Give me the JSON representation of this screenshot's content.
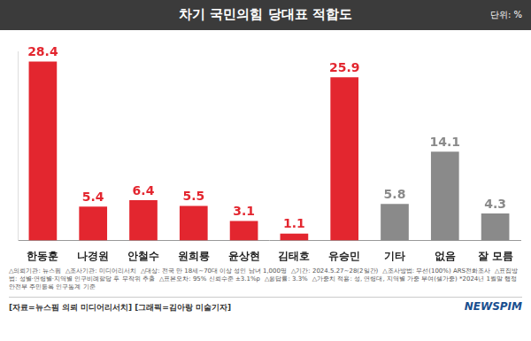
{
  "chart_data": {
    "type": "bar",
    "title": "차기 국민의힘 당대표 적합도",
    "unit_note": "단위: %",
    "categories": [
      "한동훈",
      "나경원",
      "안철수",
      "원희룡",
      "윤상현",
      "김태호",
      "유승민",
      "기타",
      "없음",
      "잘 모름"
    ],
    "values": [
      28.4,
      5.4,
      6.4,
      5.5,
      3.1,
      1.1,
      25.9,
      5.8,
      14.1,
      4.3
    ],
    "colors": [
      "#e3262f",
      "#e3262f",
      "#e3262f",
      "#e3262f",
      "#e3262f",
      "#e3262f",
      "#e3262f",
      "#8a8a8a",
      "#8a8a8a",
      "#8a8a8a"
    ],
    "ylim": [
      0,
      30
    ],
    "grid": false,
    "data_labels": true,
    "tick_labels": "x",
    "legend": false,
    "annotations": [
      "△의뢰기관: 뉴스핌",
      "△조사기관: 미디어리서치",
      "△대상: 전국 만 18세~70대 이상 성인 남녀 1,000명",
      "△기간: 2024.5.27~28(2일간)",
      "△조사방법: 무선(100%) ARS전화조사",
      "△표집방법: 성별·연령별·지역별 인구비례할당 후 무작위 추출",
      "△표본오차: 95% 신뢰수준 ±3.1%p",
      "△응답률: 3.3%",
      "△가중치 적용: 성, 연령대, 지역별 가중 부여(셀가중) *2024년 1월말 행정안전부 주민등록 인구통계 기준"
    ],
    "source": "[자료=뉴스핌 의뢰 미디어리서치] [그래픽=김아랑 미술기자]",
    "logo": "NEWSPIM"
  }
}
